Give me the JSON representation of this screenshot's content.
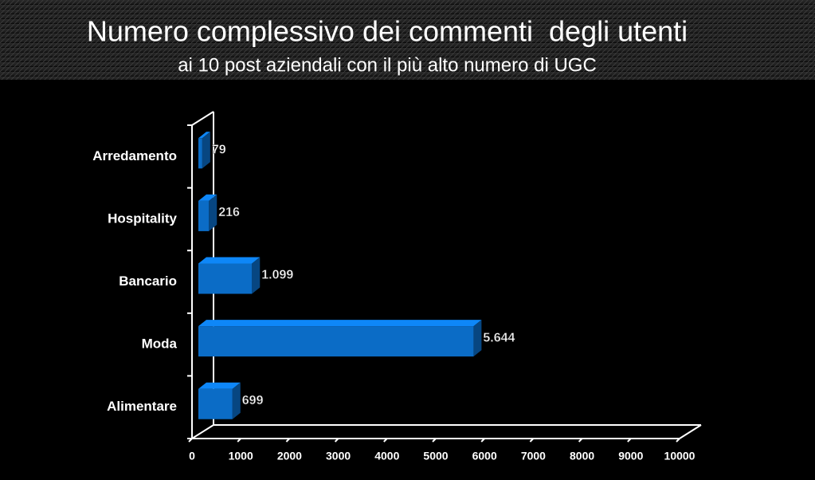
{
  "chart_data": {
    "type": "bar3d-horizontal",
    "title": "Numero complessivo dei commenti  degli utenti",
    "subtitle": "ai 10 post aziendali con il più alto numero di UGC",
    "categories": [
      "Arredamento",
      "Hospitality",
      "Bancario",
      "Moda",
      "Alimentare"
    ],
    "values": [
      79,
      216,
      1099,
      5644,
      699
    ],
    "value_labels": [
      "79",
      "216",
      "1.099",
      "5.644",
      "699"
    ],
    "color": "#0b6cc6",
    "xlim": [
      0,
      10000
    ],
    "xticks": [
      0,
      1000,
      2000,
      3000,
      4000,
      5000,
      6000,
      7000,
      8000,
      9000,
      10000
    ]
  }
}
